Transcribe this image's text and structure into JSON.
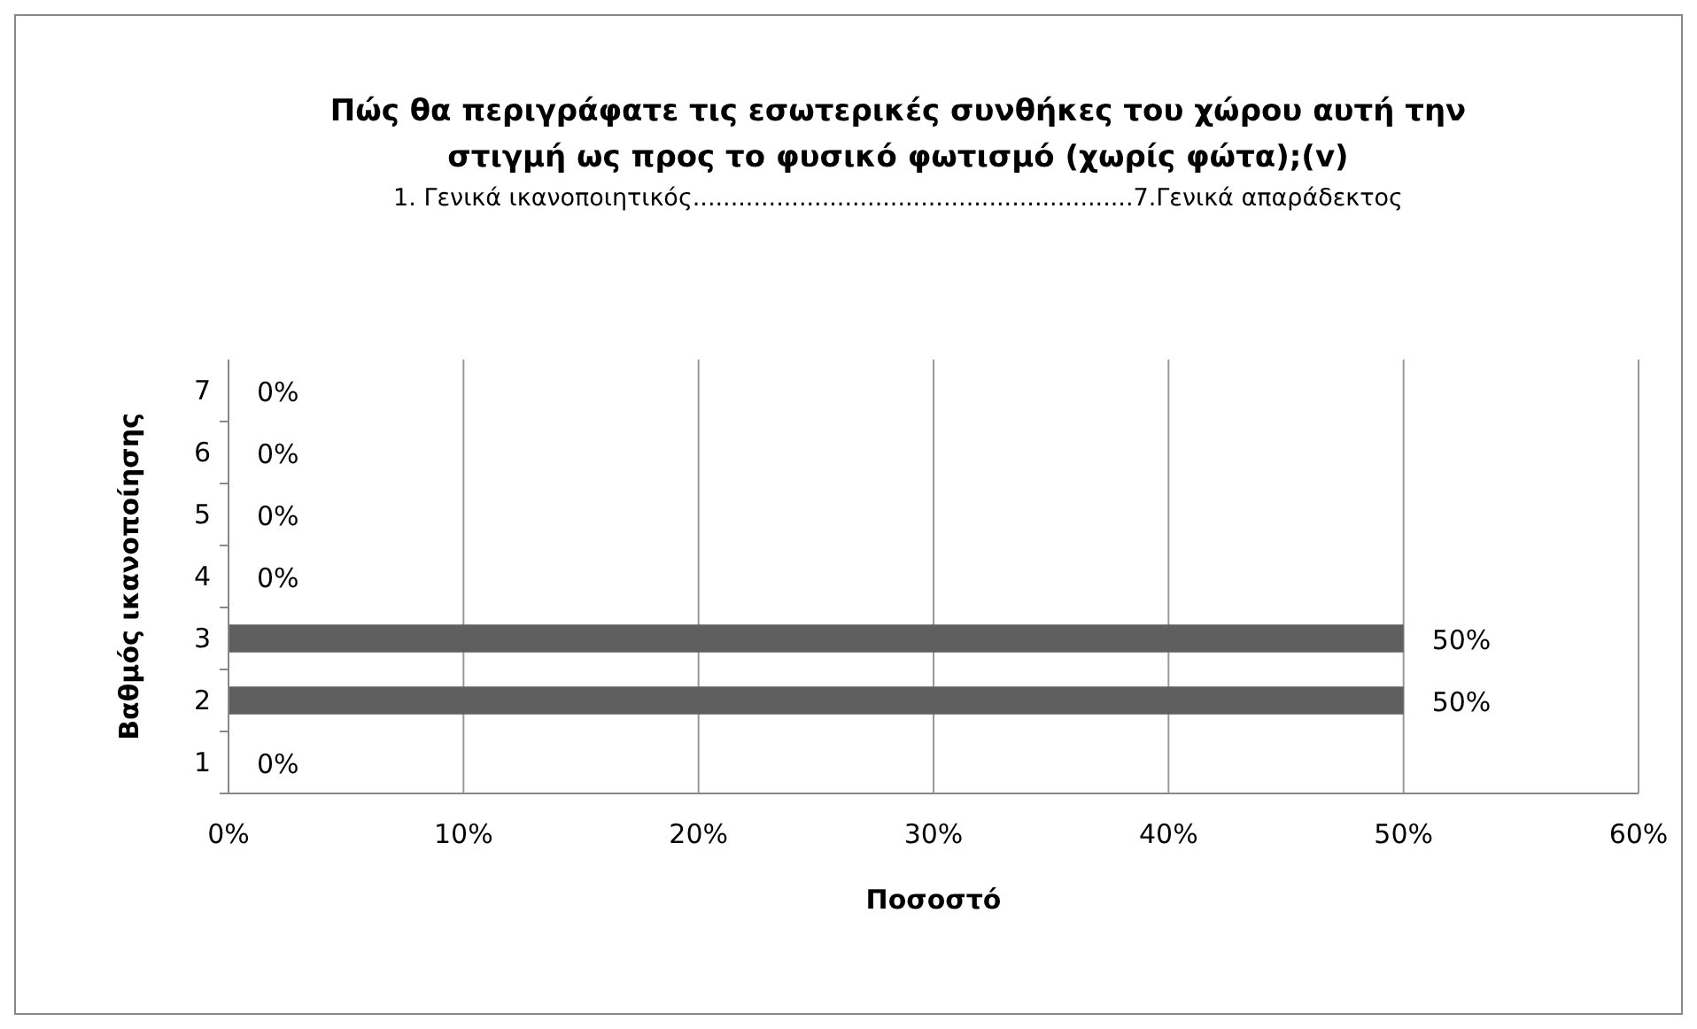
{
  "chart_data": {
    "type": "bar",
    "orientation": "horizontal",
    "title": "Πώς θα περιγράφατε τις εσωτερικές συνθήκες του χώρου αυτή την στιγμή ως προς το φυσικό φωτισμό (χωρίς φώτα);(v)",
    "subtitle": "1. Γενικά ικανοποιητικός..........................................................7.Γενικά απαράδεκτος",
    "xlabel": "Ποσοστό",
    "ylabel": "Βαθμός ικανοποίησης",
    "categories": [
      "7",
      "6",
      "5",
      "4",
      "3",
      "2",
      "1"
    ],
    "values": [
      0,
      0,
      0,
      0,
      50,
      50,
      0
    ],
    "value_labels": [
      "0%",
      "0%",
      "0%",
      "0%",
      "50%",
      "50%",
      "0%"
    ],
    "color": "#5f5f5f",
    "xlim": [
      0,
      60
    ],
    "xticks": [
      {
        "value": 0,
        "label": "0%"
      },
      {
        "value": 10,
        "label": "10%"
      },
      {
        "value": 20,
        "label": "20%"
      },
      {
        "value": 30,
        "label": "30%"
      },
      {
        "value": 40,
        "label": "40%"
      },
      {
        "value": 50,
        "label": "50%"
      },
      {
        "value": 60,
        "label": "60%"
      }
    ],
    "grid": "x"
  }
}
